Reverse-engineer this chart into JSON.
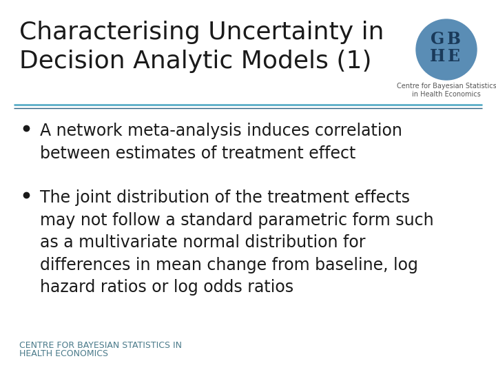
{
  "title_line1": "Characterising Uncertainty in",
  "title_line2": "Decision Analytic Models (1)",
  "title_fontsize": 26,
  "title_color": "#1a1a1a",
  "background_color": "#ffffff",
  "separator_color1": "#5aaec8",
  "separator_color2": "#2a6080",
  "bullet1_line1": "A network meta-analysis induces correlation",
  "bullet1_line2": "between estimates of treatment effect",
  "bullet2_line1": "The joint distribution of the treatment effects",
  "bullet2_line2": "may not follow a standard parametric form such",
  "bullet2_line3": "as a multivariate normal distribution for",
  "bullet2_line4": "differences in mean change from baseline, log",
  "bullet2_line5": "hazard ratios or log odds ratios",
  "bullet_color": "#1a1a1a",
  "bullet_fontsize": 17,
  "bullet_dot_color": "#1a1a1a",
  "footer_color": "#4a7a8a",
  "footer_fontsize": 9,
  "logo_circle_color": "#5a8db5",
  "logo_text_color": "#1a3a5a",
  "logo_caption_color": "#555555"
}
